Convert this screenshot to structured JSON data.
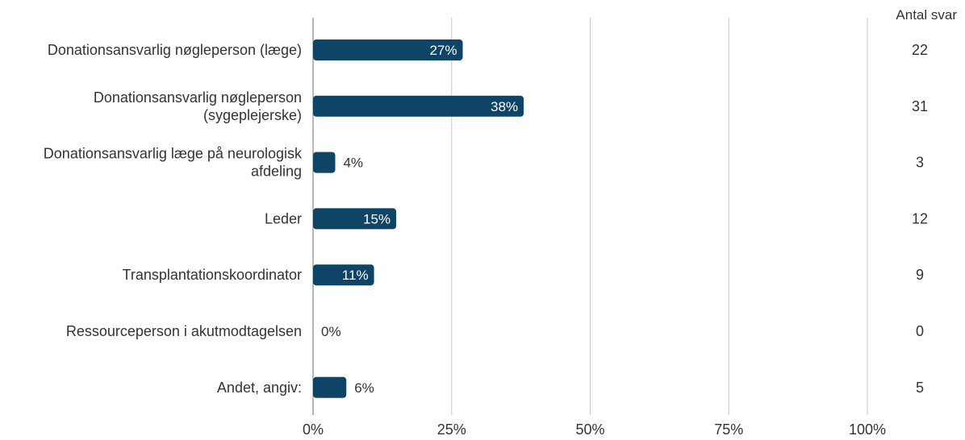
{
  "chart_data": {
    "type": "bar",
    "orientation": "horizontal",
    "categories": [
      [
        "Donationsansvarlig nøgleperson (læge)"
      ],
      [
        "Donationsansvarlig nøgleperson",
        "(sygeplejerske)"
      ],
      [
        "Donationsansvarlig læge på neurologisk",
        "afdeling"
      ],
      [
        "Leder"
      ],
      [
        "Transplantationskoordinator"
      ],
      [
        "Ressourceperson i akutmodtagelsen"
      ],
      [
        "Andet, angiv:"
      ]
    ],
    "values": [
      27,
      38,
      4,
      15,
      11,
      0,
      6
    ],
    "value_labels": [
      "27%",
      "38%",
      "4%",
      "15%",
      "11%",
      "0%",
      "6%"
    ],
    "counts": [
      "22",
      "31",
      "3",
      "12",
      "9",
      "0",
      "5"
    ],
    "count_header": "Antal svar",
    "x_ticks": [
      0,
      25,
      50,
      75,
      100
    ],
    "x_tick_labels": [
      "0%",
      "25%",
      "50%",
      "75%",
      "100%"
    ],
    "xlim": [
      0,
      100
    ],
    "grid": true,
    "colors": {
      "bar": "#0e4466",
      "grid": "#c8c8c8",
      "axis": "#888888",
      "text": "#333333",
      "inside_label": "#ffffff"
    }
  }
}
